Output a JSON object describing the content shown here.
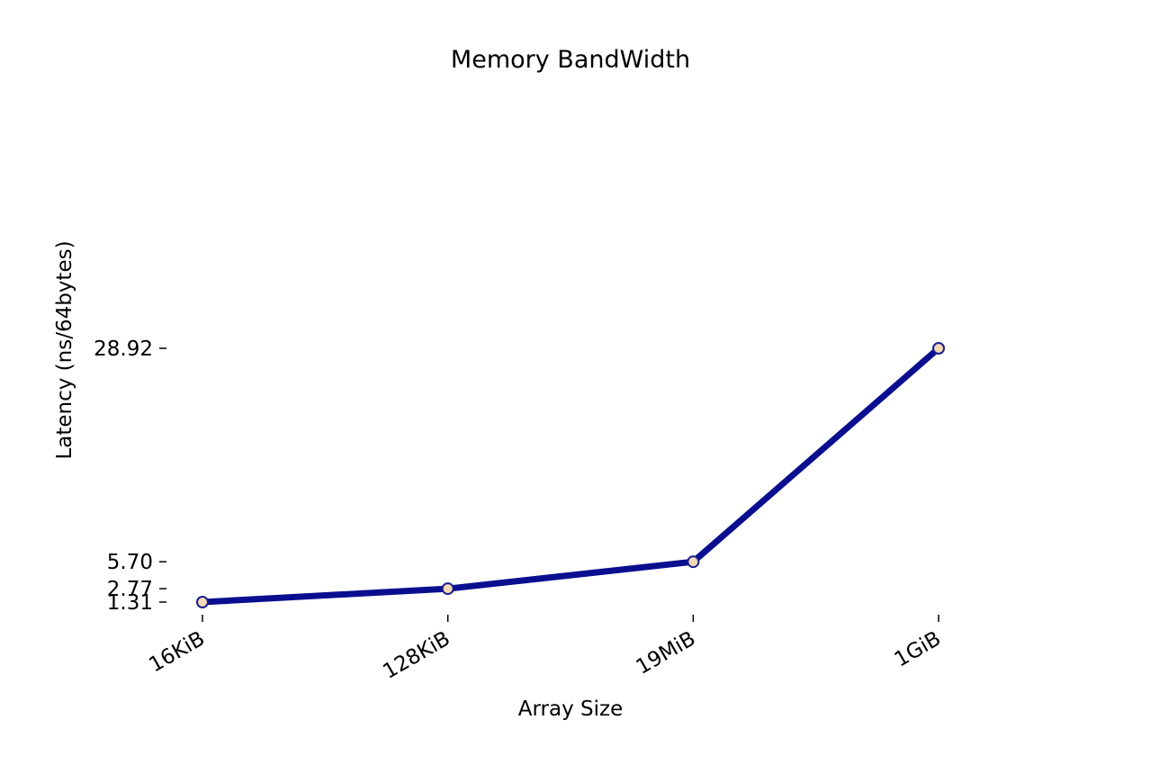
{
  "chart_data": {
    "type": "line",
    "title": "Memory BandWidth",
    "xlabel": "Array Size",
    "ylabel": "Latency (ns/64bytes)",
    "categories": [
      "16KiB",
      "128KiB",
      "19MiB",
      "1GiB"
    ],
    "yticks": [
      1.31,
      2.77,
      5.7,
      28.92
    ],
    "ytick_labels": [
      "1.31",
      "2.77",
      "5.70",
      "28.92"
    ],
    "series": [
      {
        "values": [
          1.31,
          2.77,
          5.7,
          28.92
        ]
      }
    ],
    "grid": false,
    "legend": "none"
  },
  "colors": {
    "line": "#0a0f8f",
    "marker_fill": "#f3d9b5",
    "marker_edge": "#1a1f8f"
  }
}
